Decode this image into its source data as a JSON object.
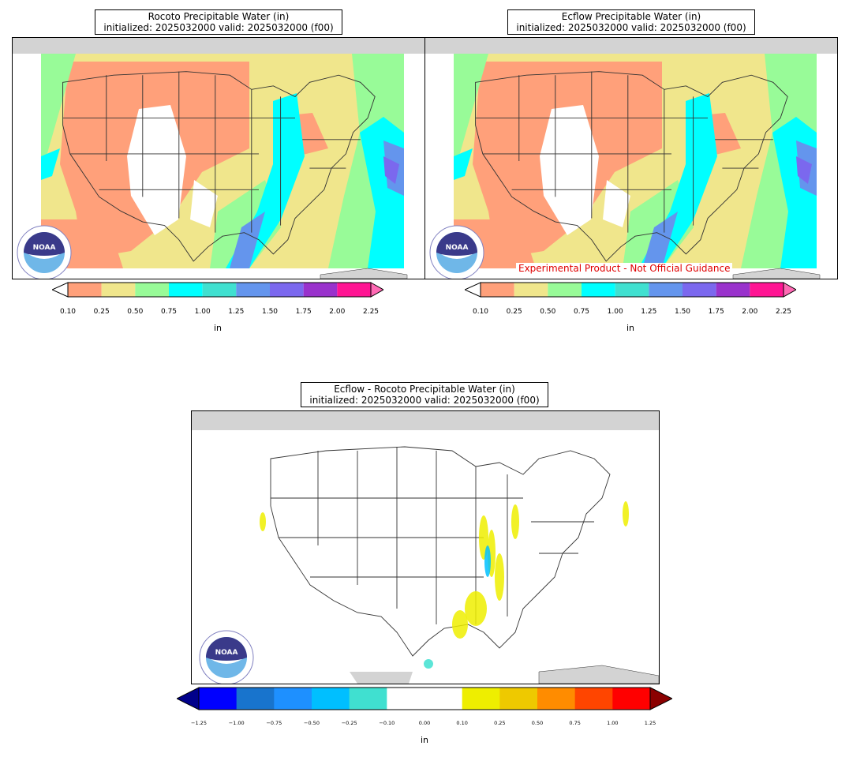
{
  "panels": {
    "rocoto": {
      "title_line1": "Rocoto Precipitable Water (in)",
      "title_line2": "initialized: 2025032000 valid: 2025032000 (f00)"
    },
    "ecflow": {
      "title_line1": "Ecflow Precipitable Water (in)",
      "title_line2": "initialized: 2025032000 valid: 2025032000 (f00)",
      "disclaimer": "Experimental Product - Not Official Guidance"
    },
    "diff": {
      "title_line1": "Ecflow - Rocoto Precipitable Water (in)",
      "title_line2": "initialized: 2025032000 valid: 2025032000 (f00)"
    }
  },
  "logo": {
    "text": "NOAA"
  },
  "colorbar_pw": {
    "unit": "in",
    "ticks": [
      "0.10",
      "0.25",
      "0.50",
      "0.75",
      "1.00",
      "1.25",
      "1.50",
      "1.75",
      "2.00",
      "2.25"
    ],
    "colors": [
      "#ffa07a",
      "#f0e68c",
      "#98fb98",
      "#00ffff",
      "#40e0d0",
      "#6495ed",
      "#7b68ee",
      "#9932cc",
      "#ff1493"
    ],
    "under_color": "#ffffff",
    "over_color": "#ff69b4"
  },
  "colorbar_diff": {
    "unit": "in",
    "ticks": [
      "−1.25",
      "−1.00",
      "−0.75",
      "−0.50",
      "−0.25",
      "−0.10",
      "0.00",
      "0.10",
      "0.25",
      "0.50",
      "0.75",
      "1.00",
      "1.25"
    ],
    "colors": [
      "#0000ff",
      "#1874cd",
      "#1e90ff",
      "#00bfff",
      "#40e0d0",
      "#ffffff",
      "#ffffff",
      "#eeee00",
      "#eec900",
      "#ff8c00",
      "#ff4500",
      "#ff0000"
    ],
    "under_color": "#00008b",
    "over_color": "#8b0000"
  },
  "pw_field_colors": {
    "low": "#ffa07a",
    "mid": "#f0e68c",
    "moist": "#98fb98",
    "wet": "#00ffff",
    "wetter": "#6495ed",
    "wettest": "#7b68ee",
    "none": "#ffffff"
  },
  "map_colors": {
    "outside": "#d3d3d3",
    "border": "#333333"
  }
}
